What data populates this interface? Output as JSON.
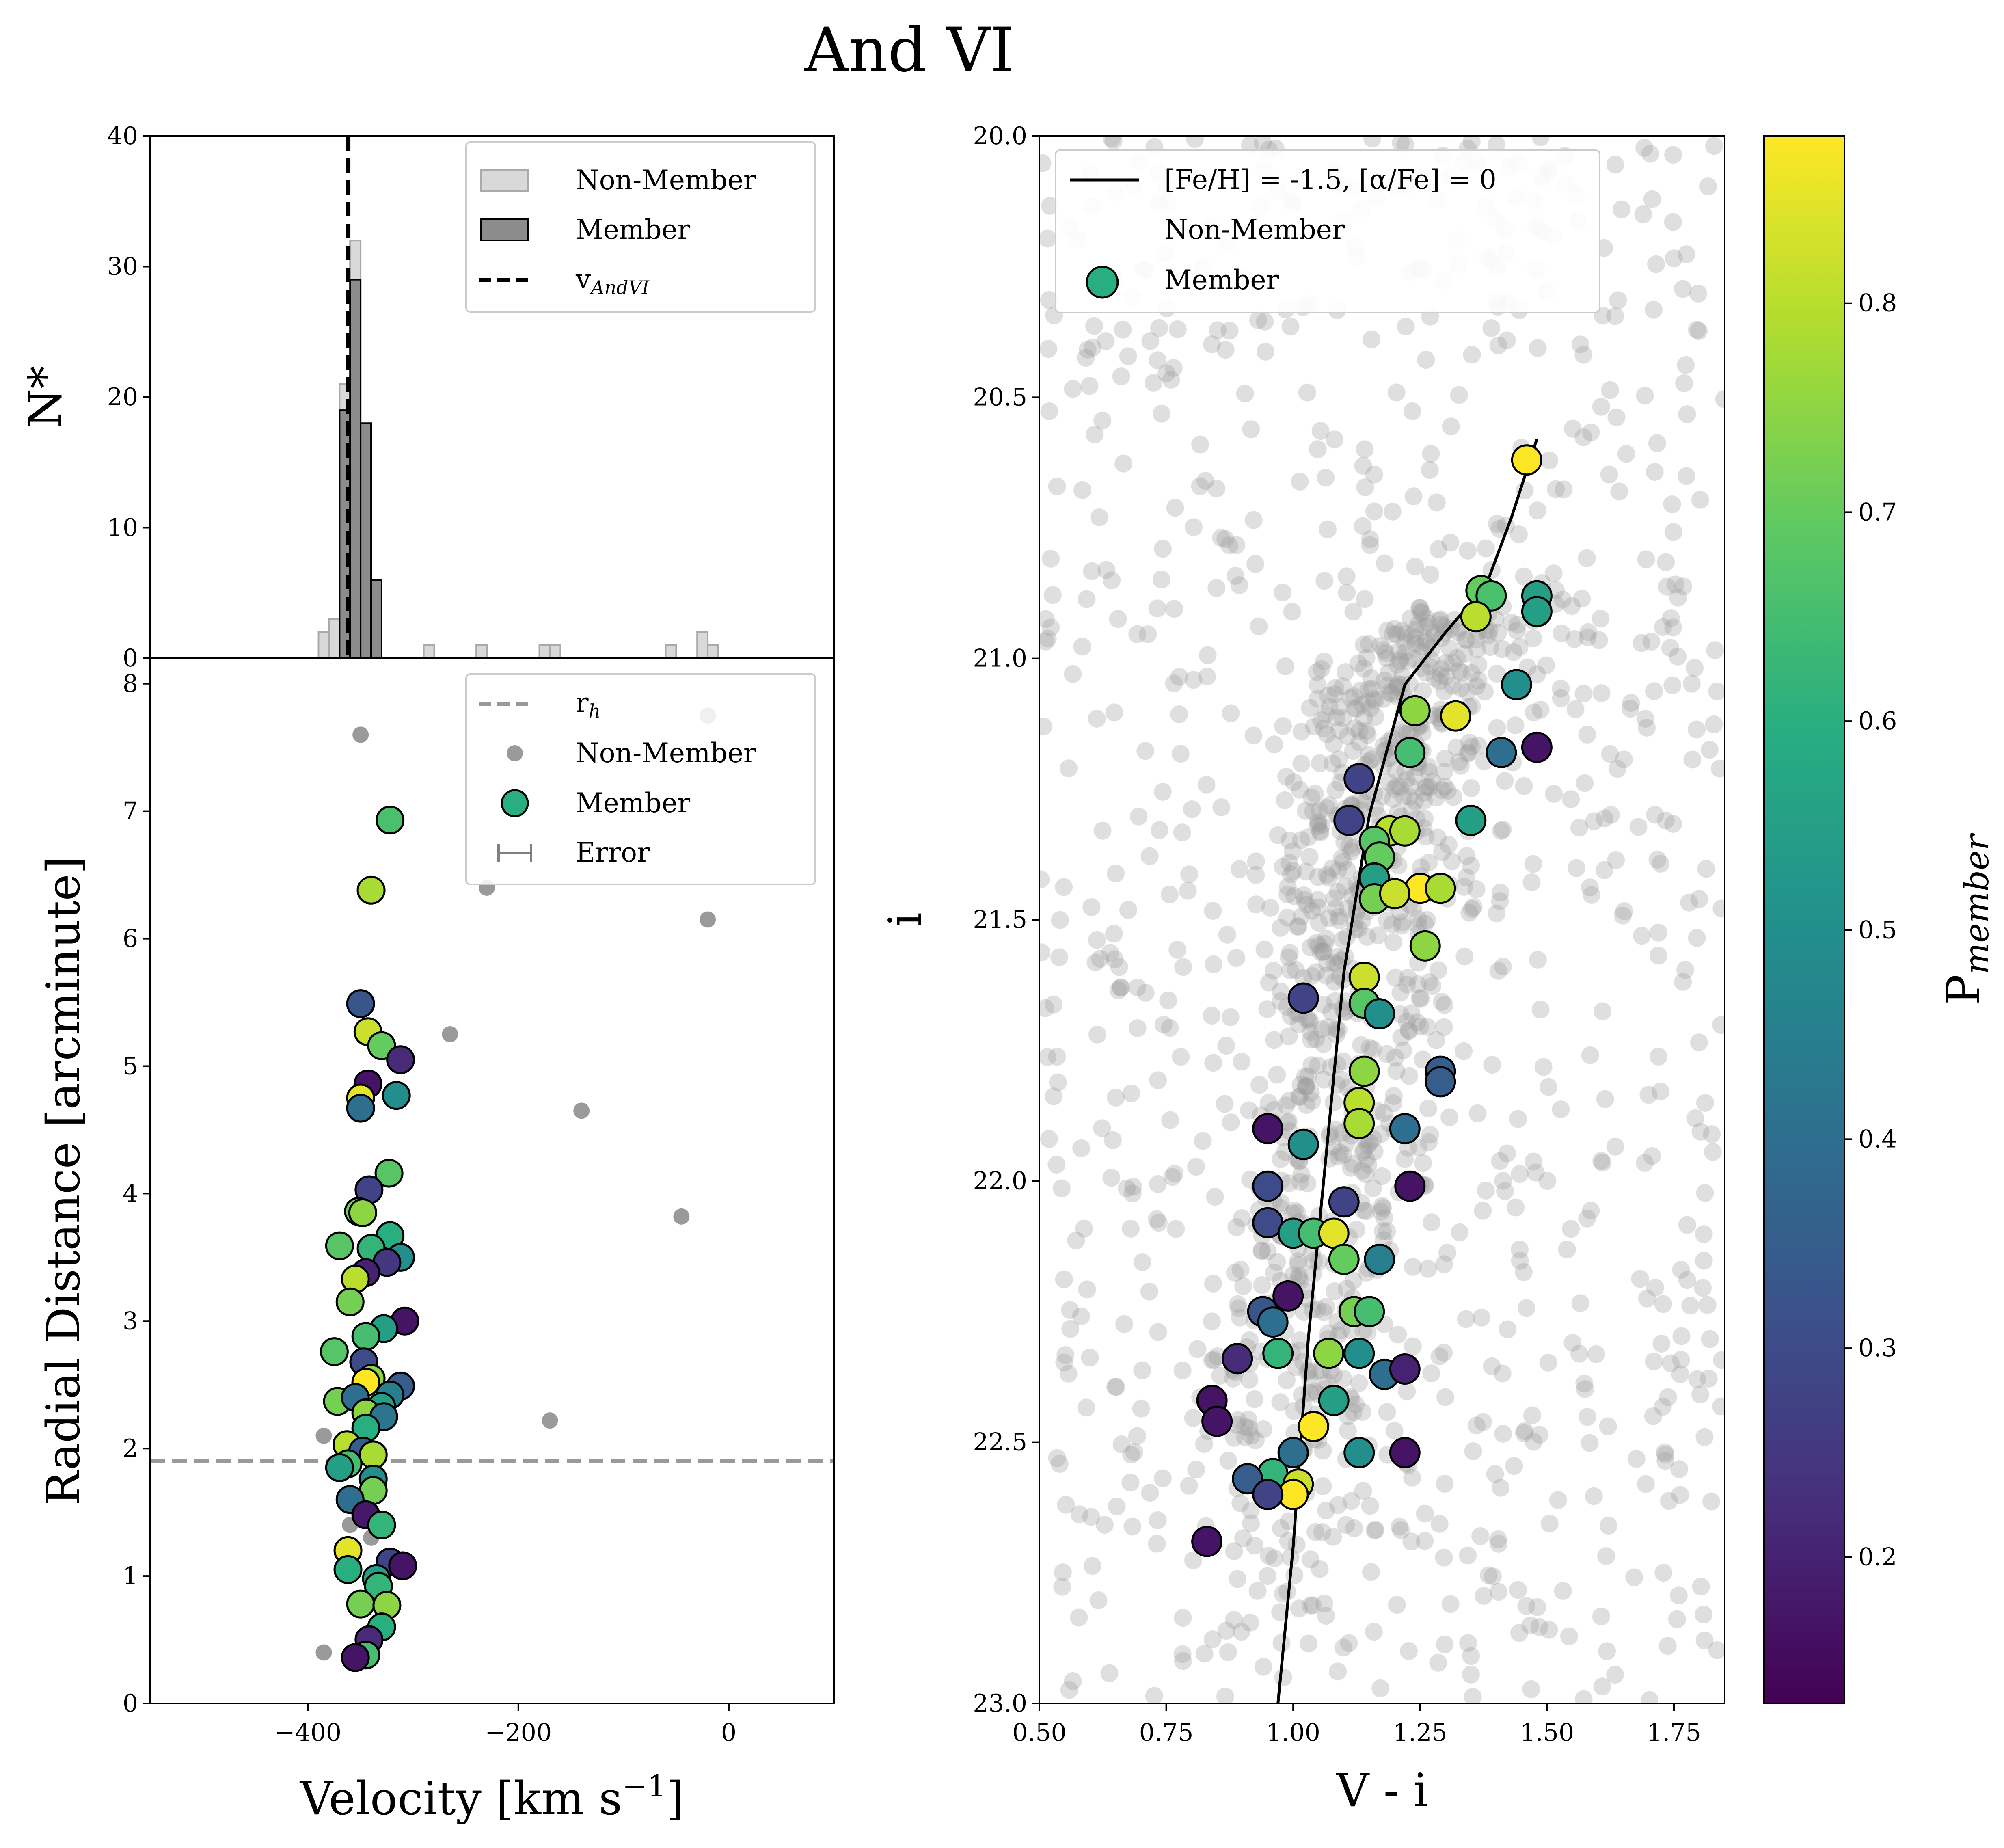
{
  "title": "And VI",
  "hist": {
    "ylabel": "N*",
    "ylim": [
      0,
      40
    ],
    "yticks": [
      "0",
      "10",
      "20",
      "30",
      "40"
    ],
    "legend": [
      "Non-Member",
      "Member",
      "v"
    ],
    "legend_v_sub": "AndVI"
  },
  "radial": {
    "xlabel": "Velocity [km s",
    "xlabel_sup": "−1",
    "xlabel_end": "]",
    "ylabel": "Radial Distance [arcminute]",
    "xlim": [
      -550,
      100
    ],
    "ylim": [
      0,
      8.2
    ],
    "xticks": [
      "−400",
      "−200",
      "0"
    ],
    "yticks": [
      "0",
      "1",
      "2",
      "3",
      "4",
      "5",
      "6",
      "7",
      "8"
    ],
    "legend": [
      "r",
      "Non-Member",
      "Member",
      "Error"
    ],
    "legend_r_sub": "h"
  },
  "cmd": {
    "xlabel": "V - i",
    "ylabel": "i",
    "xlim": [
      0.5,
      1.85
    ],
    "ylim": [
      23.0,
      20.0
    ],
    "xticks": [
      "0.50",
      "0.75",
      "1.00",
      "1.25",
      "1.50",
      "1.75"
    ],
    "yticks": [
      "20.0",
      "20.5",
      "21.0",
      "21.5",
      "22.0",
      "22.5",
      "23.0"
    ],
    "legend": [
      "[Fe/H] = -1.5, [α/Fe] = 0",
      "Non-Member",
      "Member"
    ]
  },
  "colorbar": {
    "label": "P",
    "label_sub": "member",
    "range": [
      0.13,
      0.88
    ],
    "ticks": [
      "0.2",
      "0.3",
      "0.4",
      "0.5",
      "0.6",
      "0.7",
      "0.8"
    ]
  },
  "colors": {
    "hist_member": "#8c8c8c",
    "hist_nonmember": "#d9d9d9",
    "nonmember_point": "#9a9a9a",
    "rh_line": "#999999",
    "isochrone": "#000000"
  },
  "chart_data": [
    {
      "type": "bar",
      "panel": "velocity-histogram",
      "bin_width": 10,
      "member_bins": [
        {
          "x": -370,
          "n": 19
        },
        {
          "x": -360,
          "n": 29
        },
        {
          "x": -350,
          "n": 18
        },
        {
          "x": -340,
          "n": 6
        }
      ],
      "nonmember_bins": [
        {
          "x": -390,
          "n": 2
        },
        {
          "x": -380,
          "n": 3
        },
        {
          "x": -370,
          "n": 21
        },
        {
          "x": -360,
          "n": 32
        },
        {
          "x": -350,
          "n": 18
        },
        {
          "x": -340,
          "n": 6
        },
        {
          "x": -290,
          "n": 1
        },
        {
          "x": -240,
          "n": 1
        },
        {
          "x": -180,
          "n": 1
        },
        {
          "x": -170,
          "n": 1
        },
        {
          "x": -60,
          "n": 1
        },
        {
          "x": -30,
          "n": 2
        },
        {
          "x": -20,
          "n": 1
        }
      ],
      "v_sys": -362,
      "ylim": [
        0,
        40
      ]
    },
    {
      "type": "scatter",
      "panel": "radial-distance-vs-velocity",
      "r_h": 1.9,
      "nonmembers": [
        [
          -350,
          7.6
        ],
        [
          -20,
          7.75
        ],
        [
          -230,
          6.4
        ],
        [
          -20,
          6.15
        ],
        [
          -265,
          5.25
        ],
        [
          -140,
          4.65
        ],
        [
          -45,
          3.82
        ],
        [
          -170,
          2.22
        ],
        [
          -385,
          2.1
        ],
        [
          -360,
          1.4
        ],
        [
          -385,
          0.4
        ],
        [
          -340,
          1.3
        ]
      ],
      "members": [
        [
          -322,
          6.93,
          0.66
        ],
        [
          -340,
          6.38,
          0.78
        ],
        [
          -350,
          5.49,
          0.33
        ],
        [
          -343,
          5.27,
          0.82
        ],
        [
          -330,
          5.16,
          0.7
        ],
        [
          -312,
          5.05,
          0.22
        ],
        [
          -343,
          4.86,
          0.17
        ],
        [
          -350,
          4.75,
          0.85
        ],
        [
          -350,
          4.67,
          0.4
        ],
        [
          -316,
          4.77,
          0.5
        ],
        [
          -323,
          4.16,
          0.68
        ],
        [
          -342,
          4.03,
          0.28
        ],
        [
          -352,
          3.86,
          0.72
        ],
        [
          -348,
          3.85,
          0.75
        ],
        [
          -322,
          3.67,
          0.6
        ],
        [
          -370,
          3.59,
          0.68
        ],
        [
          -340,
          3.57,
          0.62
        ],
        [
          -312,
          3.5,
          0.5
        ],
        [
          -325,
          3.46,
          0.25
        ],
        [
          -345,
          3.38,
          0.2
        ],
        [
          -355,
          3.33,
          0.8
        ],
        [
          -360,
          3.15,
          0.72
        ],
        [
          -308,
          3.0,
          0.17
        ],
        [
          -328,
          2.94,
          0.55
        ],
        [
          -345,
          2.88,
          0.65
        ],
        [
          -375,
          2.76,
          0.68
        ],
        [
          -347,
          2.68,
          0.3
        ],
        [
          -340,
          2.55,
          0.75
        ],
        [
          -345,
          2.52,
          0.88
        ],
        [
          -312,
          2.49,
          0.35
        ],
        [
          -322,
          2.42,
          0.45
        ],
        [
          -372,
          2.37,
          0.72
        ],
        [
          -355,
          2.4,
          0.4
        ],
        [
          -330,
          2.33,
          0.55
        ],
        [
          -345,
          2.28,
          0.75
        ],
        [
          -328,
          2.25,
          0.42
        ],
        [
          -345,
          2.16,
          0.6
        ],
        [
          -363,
          2.03,
          0.8
        ],
        [
          -348,
          1.98,
          0.35
        ],
        [
          -338,
          1.95,
          0.78
        ],
        [
          -362,
          1.88,
          0.65
        ],
        [
          -370,
          1.85,
          0.55
        ],
        [
          -338,
          1.76,
          0.5
        ],
        [
          -338,
          1.67,
          0.72
        ],
        [
          -360,
          1.6,
          0.4
        ],
        [
          -345,
          1.48,
          0.18
        ],
        [
          -330,
          1.4,
          0.62
        ],
        [
          -362,
          1.2,
          0.85
        ],
        [
          -322,
          1.11,
          0.28
        ],
        [
          -310,
          1.08,
          0.17
        ],
        [
          -362,
          1.05,
          0.6
        ],
        [
          -335,
          0.98,
          0.55
        ],
        [
          -333,
          0.92,
          0.62
        ],
        [
          -350,
          0.78,
          0.72
        ],
        [
          -325,
          0.77,
          0.75
        ],
        [
          -330,
          0.6,
          0.6
        ],
        [
          -342,
          0.5,
          0.22
        ],
        [
          -345,
          0.38,
          0.65
        ],
        [
          -355,
          0.36,
          0.17
        ]
      ]
    },
    {
      "type": "scatter",
      "panel": "color-magnitude-diagram",
      "isochrone": [
        [
          0.97,
          23.0
        ],
        [
          1.0,
          22.7
        ],
        [
          1.03,
          22.3
        ],
        [
          1.06,
          22.0
        ],
        [
          1.1,
          21.6
        ],
        [
          1.15,
          21.3
        ],
        [
          1.22,
          21.05
        ],
        [
          1.3,
          20.95
        ],
        [
          1.38,
          20.86
        ],
        [
          1.43,
          20.73
        ],
        [
          1.48,
          20.58
        ]
      ],
      "members": [
        [
          1.46,
          20.62,
          0.88
        ],
        [
          1.37,
          20.87,
          0.7
        ],
        [
          1.39,
          20.88,
          0.66
        ],
        [
          1.48,
          20.88,
          0.55
        ],
        [
          1.48,
          20.91,
          0.55
        ],
        [
          1.36,
          20.92,
          0.8
        ],
        [
          1.44,
          21.05,
          0.5
        ],
        [
          1.24,
          21.1,
          0.75
        ],
        [
          1.32,
          21.11,
          0.85
        ],
        [
          1.41,
          21.18,
          0.4
        ],
        [
          1.48,
          21.17,
          0.17
        ],
        [
          1.23,
          21.18,
          0.65
        ],
        [
          1.13,
          21.23,
          0.28
        ],
        [
          1.11,
          21.31,
          0.28
        ],
        [
          1.35,
          21.31,
          0.55
        ],
        [
          1.19,
          21.33,
          0.8
        ],
        [
          1.22,
          21.33,
          0.78
        ],
        [
          1.16,
          21.35,
          0.68
        ],
        [
          1.17,
          21.38,
          0.7
        ],
        [
          1.16,
          21.42,
          0.55
        ],
        [
          1.25,
          21.44,
          0.88
        ],
        [
          1.29,
          21.44,
          0.78
        ],
        [
          1.16,
          21.46,
          0.72
        ],
        [
          1.2,
          21.45,
          0.82
        ],
        [
          1.26,
          21.55,
          0.75
        ],
        [
          1.14,
          21.61,
          0.82
        ],
        [
          1.02,
          21.65,
          0.28
        ],
        [
          1.14,
          21.66,
          0.68
        ],
        [
          1.17,
          21.68,
          0.5
        ],
        [
          1.14,
          21.79,
          0.75
        ],
        [
          1.29,
          21.79,
          0.35
        ],
        [
          1.29,
          21.81,
          0.35
        ],
        [
          1.13,
          21.85,
          0.8
        ],
        [
          0.95,
          21.9,
          0.17
        ],
        [
          1.13,
          21.89,
          0.78
        ],
        [
          1.02,
          21.93,
          0.5
        ],
        [
          1.22,
          21.9,
          0.4
        ],
        [
          0.95,
          22.01,
          0.3
        ],
        [
          1.23,
          22.01,
          0.17
        ],
        [
          1.1,
          22.04,
          0.28
        ],
        [
          0.95,
          22.08,
          0.3
        ],
        [
          1.0,
          22.1,
          0.55
        ],
        [
          1.04,
          22.1,
          0.65
        ],
        [
          1.08,
          22.1,
          0.85
        ],
        [
          1.1,
          22.15,
          0.7
        ],
        [
          1.17,
          22.15,
          0.45
        ],
        [
          0.99,
          22.22,
          0.17
        ],
        [
          0.94,
          22.25,
          0.33
        ],
        [
          1.12,
          22.25,
          0.72
        ],
        [
          1.15,
          22.25,
          0.65
        ],
        [
          0.96,
          22.27,
          0.4
        ],
        [
          0.89,
          22.34,
          0.22
        ],
        [
          0.97,
          22.33,
          0.62
        ],
        [
          1.07,
          22.33,
          0.75
        ],
        [
          1.13,
          22.33,
          0.5
        ],
        [
          1.18,
          22.37,
          0.4
        ],
        [
          1.22,
          22.36,
          0.2
        ],
        [
          0.84,
          22.42,
          0.17
        ],
        [
          1.08,
          22.42,
          0.55
        ],
        [
          0.85,
          22.46,
          0.17
        ],
        [
          1.04,
          22.47,
          0.88
        ],
        [
          1.0,
          22.52,
          0.4
        ],
        [
          1.13,
          22.52,
          0.5
        ],
        [
          1.22,
          22.52,
          0.17
        ],
        [
          0.96,
          22.56,
          0.62
        ],
        [
          0.91,
          22.57,
          0.35
        ],
        [
          1.01,
          22.58,
          0.82
        ],
        [
          1.0,
          22.6,
          0.88
        ],
        [
          0.95,
          22.6,
          0.28
        ],
        [
          0.83,
          22.69,
          0.17
        ]
      ]
    }
  ]
}
